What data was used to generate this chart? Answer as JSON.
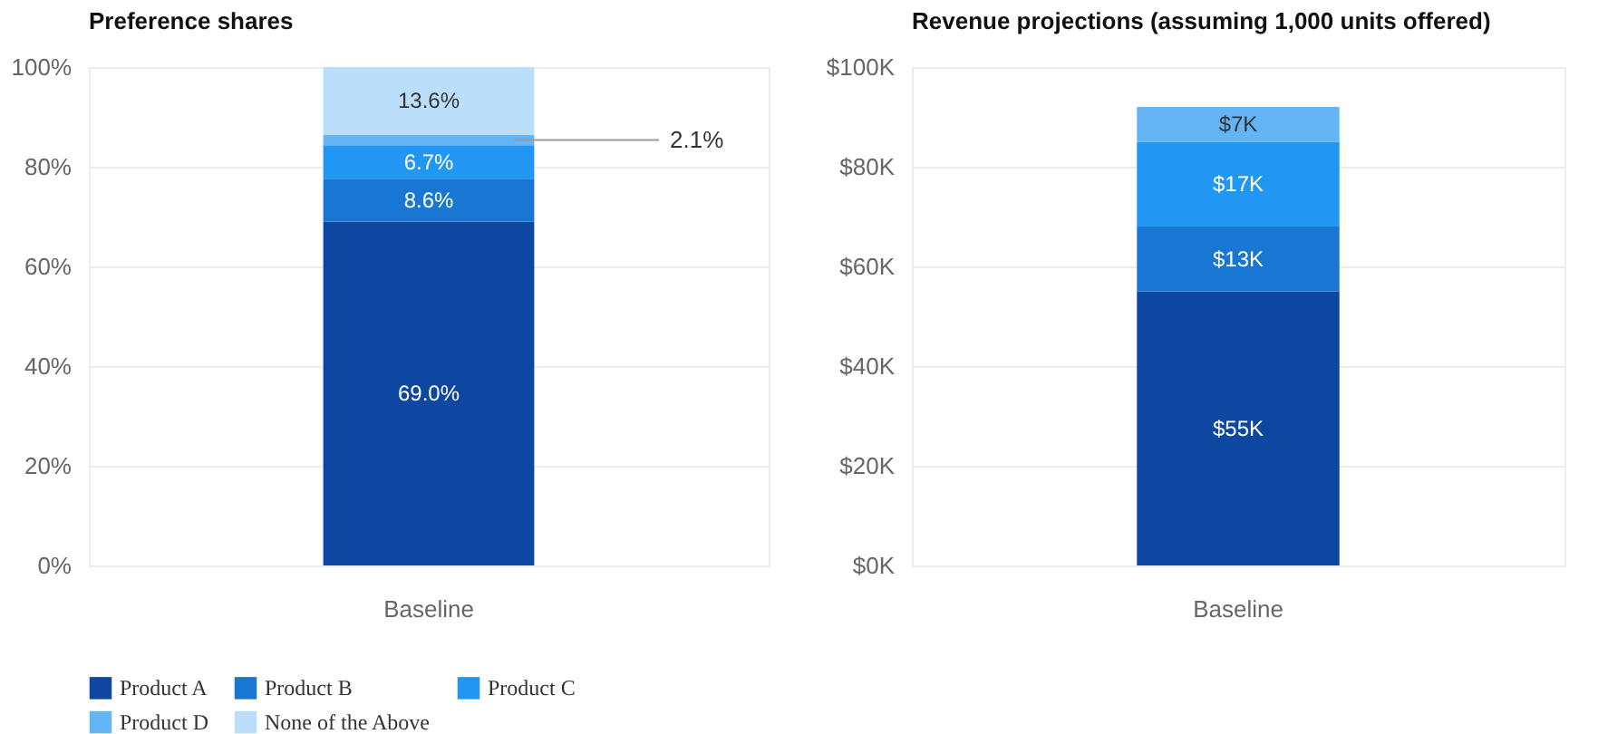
{
  "chart_data": [
    {
      "type": "bar",
      "title": "Preference shares",
      "categories": [
        "Baseline"
      ],
      "stacked": true,
      "ylim": [
        0,
        100
      ],
      "yticks": [
        {
          "value": 0,
          "label": "0%"
        },
        {
          "value": 20,
          "label": "20%"
        },
        {
          "value": 40,
          "label": "40%"
        },
        {
          "value": 60,
          "label": "60%"
        },
        {
          "value": 80,
          "label": "80%"
        },
        {
          "value": 100,
          "label": "100%"
        }
      ],
      "grid": "y",
      "legend": "bottom",
      "series": [
        {
          "name": "Product A",
          "color": "#0d47a1",
          "values": [
            69.0
          ],
          "value_labels": [
            "69.0%"
          ]
        },
        {
          "name": "Product B",
          "color": "#1976d2",
          "values": [
            8.6
          ],
          "value_labels": [
            "8.6%"
          ]
        },
        {
          "name": "Product C",
          "color": "#2196f3",
          "values": [
            6.7
          ],
          "value_labels": [
            "6.7%"
          ]
        },
        {
          "name": "Product D",
          "color": "#64b5f6",
          "values": [
            2.1
          ],
          "value_labels": [
            "2.1%"
          ]
        },
        {
          "name": "None of the Above",
          "color": "#bbdefb",
          "values": [
            13.6
          ],
          "value_labels": [
            "13.6%"
          ]
        }
      ]
    },
    {
      "type": "bar",
      "title": "Revenue projections (assuming 1,000 units offered)",
      "categories": [
        "Baseline"
      ],
      "stacked": true,
      "ylim": [
        0,
        100000
      ],
      "yticks": [
        {
          "value": 0,
          "label": "$0K"
        },
        {
          "value": 20000,
          "label": "$20K"
        },
        {
          "value": 40000,
          "label": "$40K"
        },
        {
          "value": 60000,
          "label": "$60K"
        },
        {
          "value": 80000,
          "label": "$80K"
        },
        {
          "value": 100000,
          "label": "$100K"
        }
      ],
      "grid": "y",
      "series": [
        {
          "color": "#0d47a1",
          "values": [
            55000
          ],
          "value_labels": [
            "$55K"
          ]
        },
        {
          "color": "#1976d2",
          "values": [
            13000
          ],
          "value_labels": [
            "$13K"
          ]
        },
        {
          "color": "#2196f3",
          "values": [
            17000
          ],
          "value_labels": [
            "$17K"
          ]
        },
        {
          "color": "#64b5f6",
          "values": [
            7000
          ],
          "value_labels": [
            "$7K"
          ]
        }
      ]
    }
  ]
}
